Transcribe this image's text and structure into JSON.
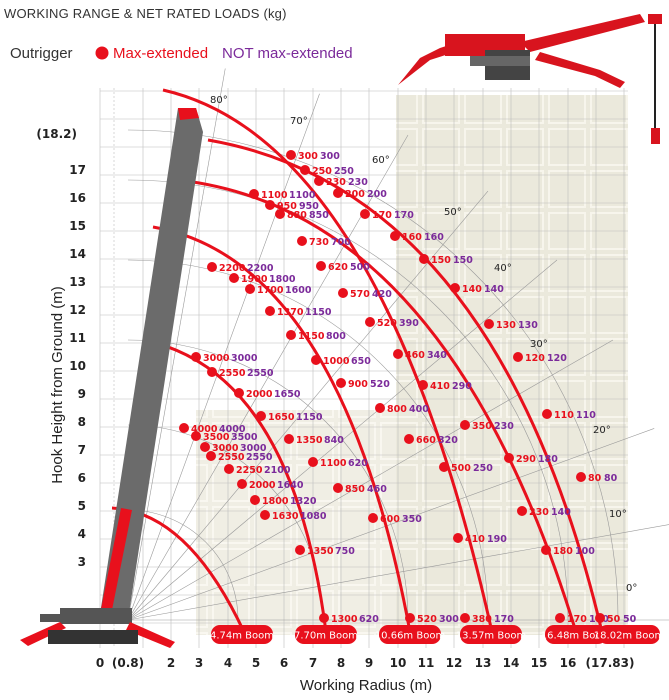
{
  "header": {
    "title": "WORKING RANGE & NET RATED LOADS (kg)",
    "legend_prefix": "Outrigger",
    "legend_max": "Max-extended",
    "legend_not_max": "NOT max-extended"
  },
  "axes": {
    "y_label": "Hook Height from Ground (m)",
    "x_label": "Working Radius (m)",
    "y_ticks": [
      "3",
      "4",
      "5",
      "6",
      "7",
      "8",
      "9",
      "10",
      "11",
      "12",
      "13",
      "14",
      "15",
      "16",
      "17",
      "(18.2)"
    ],
    "x_ticks": [
      "0",
      "(0.8)",
      "2",
      "3",
      "4",
      "5",
      "6",
      "7",
      "8",
      "9",
      "10",
      "11",
      "12",
      "13",
      "14",
      "15",
      "16",
      "(17.83)"
    ]
  },
  "angles": [
    "80°",
    "70°",
    "60°",
    "50°",
    "40°",
    "30°",
    "20°",
    "10°",
    "0°"
  ],
  "booms": [
    "4.74m Boom",
    "7.70m Boom",
    "10.66m Boom",
    "13.57m Boom",
    "16.48m Boom",
    "18.02m Boom"
  ],
  "loads": [
    {
      "max": "4000",
      "not": "4000"
    },
    {
      "max": "3500",
      "not": "3500"
    },
    {
      "max": "3000",
      "not": "3000"
    },
    {
      "max": "2550",
      "not": "2550"
    },
    {
      "max": "2250",
      "not": "2100"
    },
    {
      "max": "2000",
      "not": "1640"
    },
    {
      "max": "1800",
      "not": "1320"
    },
    {
      "max": "1630",
      "not": "1080"
    },
    {
      "max": "3000",
      "not": "3000"
    },
    {
      "max": "2550",
      "not": "2550"
    },
    {
      "max": "2000",
      "not": "1650"
    },
    {
      "max": "1650",
      "not": "1150"
    },
    {
      "max": "1350",
      "not": "840"
    },
    {
      "max": "1100",
      "not": "620"
    },
    {
      "max": "850",
      "not": "460"
    },
    {
      "max": "600",
      "not": "350"
    },
    {
      "max": "1350",
      "not": "750"
    },
    {
      "max": "1300",
      "not": "620"
    },
    {
      "max": "2200",
      "not": "2200"
    },
    {
      "max": "1900",
      "not": "1800"
    },
    {
      "max": "1700",
      "not": "1600"
    },
    {
      "max": "1370",
      "not": "1150"
    },
    {
      "max": "1150",
      "not": "800"
    },
    {
      "max": "1000",
      "not": "650"
    },
    {
      "max": "900",
      "not": "520"
    },
    {
      "max": "800",
      "not": "400"
    },
    {
      "max": "660",
      "not": "320"
    },
    {
      "max": "500",
      "not": "250"
    },
    {
      "max": "410",
      "not": "190"
    },
    {
      "max": "520",
      "not": "300"
    },
    {
      "max": "1100",
      "not": "1100"
    },
    {
      "max": "950",
      "not": "950"
    },
    {
      "max": "880",
      "not": "850"
    },
    {
      "max": "730",
      "not": "700"
    },
    {
      "max": "620",
      "not": "500"
    },
    {
      "max": "570",
      "not": "420"
    },
    {
      "max": "520",
      "not": "390"
    },
    {
      "max": "460",
      "not": "340"
    },
    {
      "max": "410",
      "not": "290"
    },
    {
      "max": "350",
      "not": "230"
    },
    {
      "max": "290",
      "not": "180"
    },
    {
      "max": "230",
      "not": "140"
    },
    {
      "max": "180",
      "not": "100"
    },
    {
      "max": "170",
      "not": "100"
    },
    {
      "max": "380",
      "not": "170"
    },
    {
      "max": "300",
      "not": "300"
    },
    {
      "max": "250",
      "not": "250"
    },
    {
      "max": "230",
      "not": "230"
    },
    {
      "max": "200",
      "not": "200"
    },
    {
      "max": "170",
      "not": "170"
    },
    {
      "max": "160",
      "not": "160"
    },
    {
      "max": "150",
      "not": "150"
    },
    {
      "max": "140",
      "not": "140"
    },
    {
      "max": "130",
      "not": "130"
    },
    {
      "max": "120",
      "not": "120"
    },
    {
      "max": "110",
      "not": "110"
    },
    {
      "max": "80",
      "not": "80"
    },
    {
      "max": "50",
      "not": "50"
    }
  ],
  "colors": {
    "red": "#e8101c",
    "purple": "#7b2a9a",
    "boom_grey": "#6b6b6b",
    "grid": "#bdbdbd"
  }
}
